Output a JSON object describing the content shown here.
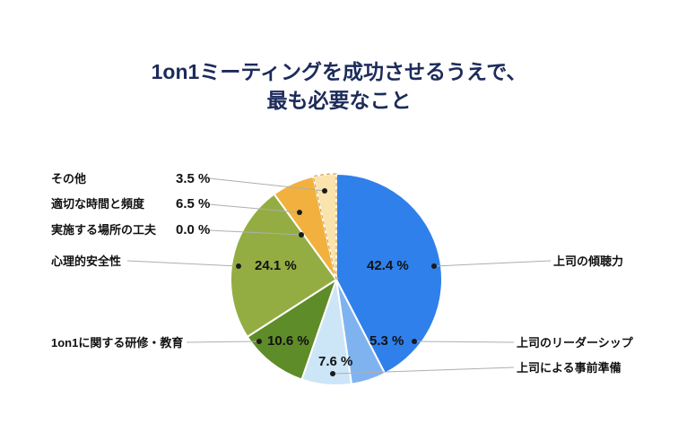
{
  "title": {
    "line1": "1on1ミーティングを成功させるうえで、",
    "line2": "最も必要なこと"
  },
  "chart_data": {
    "type": "pie",
    "title": "1on1ミーティングを成功させるうえで、最も必要なこと",
    "direction": "clockwise",
    "start_angle_deg": 0,
    "items": [
      {
        "key": "listening",
        "label": "上司の傾聴力",
        "value": 42.4,
        "display": "42.4 %",
        "color": "#2f80ea"
      },
      {
        "key": "leadership",
        "label": "上司のリーダーシップ",
        "value": 5.3,
        "display": "5.3 %",
        "color": "#7fb3f0"
      },
      {
        "key": "prep",
        "label": "上司による事前準備",
        "value": 7.6,
        "display": "7.6 %",
        "color": "#cce6f7"
      },
      {
        "key": "training",
        "label": "1on1に関する研修・教育",
        "value": 10.6,
        "display": "10.6 %",
        "color": "#5e8c28"
      },
      {
        "key": "safety",
        "label": "心理的安全性",
        "value": 24.1,
        "display": "24.1 %",
        "color": "#93ad43"
      },
      {
        "key": "location",
        "label": "実施する場所の工夫",
        "value": 0.0,
        "display": "0.0 %",
        "color": "#cccccc"
      },
      {
        "key": "frequency",
        "label": "適切な時間と頻度",
        "value": 6.5,
        "display": "6.5 %",
        "color": "#f2b13e"
      },
      {
        "key": "other",
        "label": "その他",
        "value": 3.5,
        "display": "3.5 %",
        "color": "#fae3ad",
        "pattern": "dashed",
        "pattern_color": "#d9a94e"
      }
    ]
  }
}
